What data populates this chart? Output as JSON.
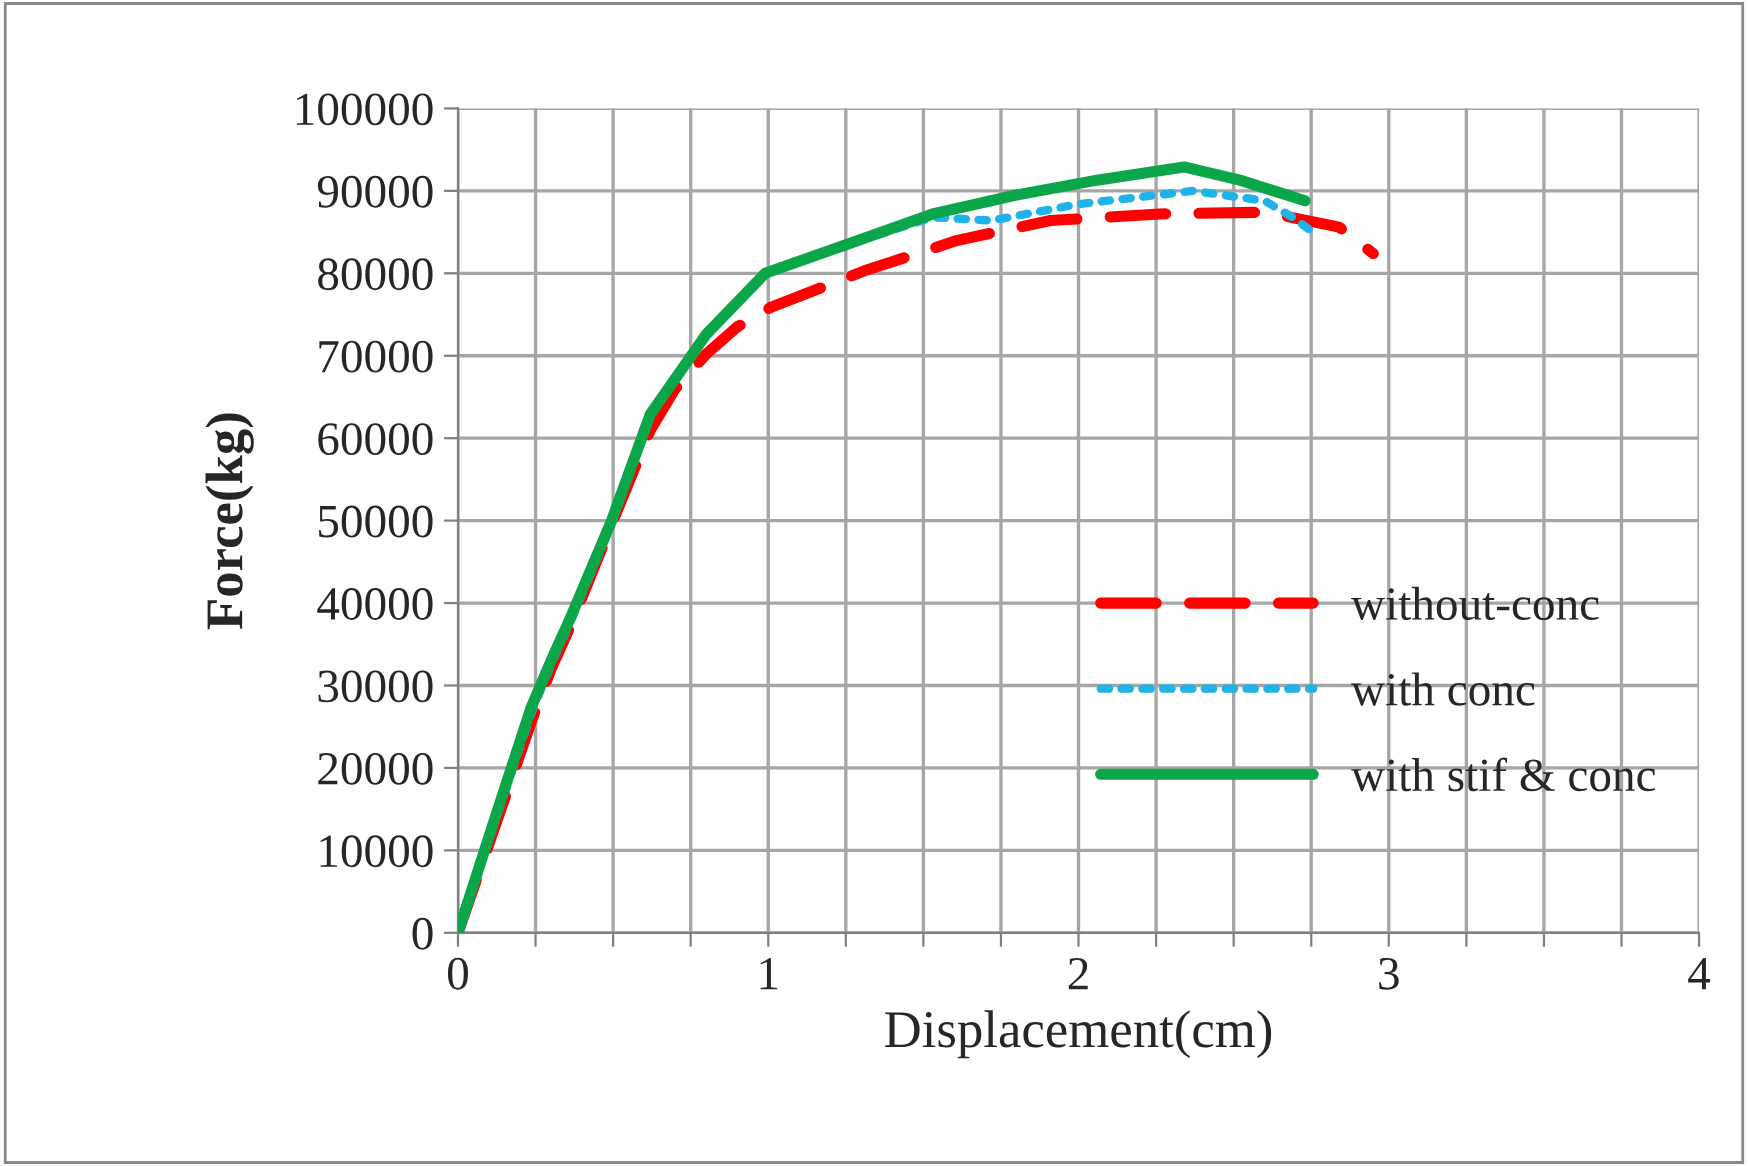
{
  "chart_data": {
    "type": "line",
    "xlabel": "Displacement(cm)",
    "ylabel": "Force(kg)",
    "xlim": [
      0,
      4
    ],
    "ylim": [
      0,
      100000
    ],
    "xticks": [
      0,
      {
        "value": 0.25,
        "label": null
      },
      {
        "value": 0.5,
        "label": null
      },
      {
        "value": 0.75,
        "label": null
      },
      1,
      {
        "value": 1.25,
        "label": null
      },
      {
        "value": 1.5,
        "label": null
      },
      {
        "value": 1.75,
        "label": null
      },
      2,
      {
        "value": 2.25,
        "label": null
      },
      {
        "value": 2.5,
        "label": null
      },
      {
        "value": 2.75,
        "label": null
      },
      3,
      {
        "value": 3.25,
        "label": null
      },
      {
        "value": 3.5,
        "label": null
      },
      {
        "value": 3.75,
        "label": null
      },
      4
    ],
    "yticks": [
      0,
      10000,
      20000,
      30000,
      40000,
      50000,
      60000,
      70000,
      80000,
      90000,
      100000
    ],
    "grid": true,
    "legend": "right",
    "marker": "none",
    "series": [
      {
        "name": "without-conc",
        "color": "#ff0000",
        "line_style": "dashed",
        "x": [
          0,
          0.12,
          0.24,
          0.3,
          0.36,
          0.5,
          0.62,
          0.7,
          0.8,
          0.9,
          1.01,
          1.31,
          1.61,
          1.91,
          2.26,
          2.58,
          2.67,
          2.84,
          2.95
        ],
        "values": [
          0,
          13000,
          26000,
          32000,
          37000,
          50000,
          61000,
          66000,
          70200,
          73500,
          75900,
          80300,
          84000,
          86400,
          87200,
          87400,
          86900,
          85600,
          82400
        ]
      },
      {
        "name": "with conc",
        "color": "#1fb3e8",
        "line_style": "dotted",
        "x": [
          0,
          0.12,
          0.24,
          0.3,
          0.36,
          0.5,
          0.62,
          0.8,
          0.99,
          1.23,
          1.53,
          1.72,
          2.0,
          2.37,
          2.6,
          2.69,
          2.77
        ],
        "values": [
          0,
          13500,
          27000,
          32500,
          37500,
          50000,
          62900,
          72600,
          80000,
          83200,
          86800,
          86400,
          88400,
          90000,
          88800,
          86800,
          84600
        ]
      },
      {
        "name": "with stif & conc",
        "color": "#0ca64a",
        "line_style": "solid",
        "x": [
          0,
          0.12,
          0.236,
          0.3,
          0.36,
          0.495,
          0.62,
          0.8,
          0.99,
          1.23,
          1.53,
          1.8,
          2.06,
          2.34,
          2.52,
          2.73
        ],
        "values": [
          0,
          14000,
          27350,
          33000,
          38000,
          50000,
          62900,
          72600,
          80000,
          83200,
          87200,
          89500,
          91300,
          92900,
          91300,
          88800
        ]
      }
    ]
  }
}
